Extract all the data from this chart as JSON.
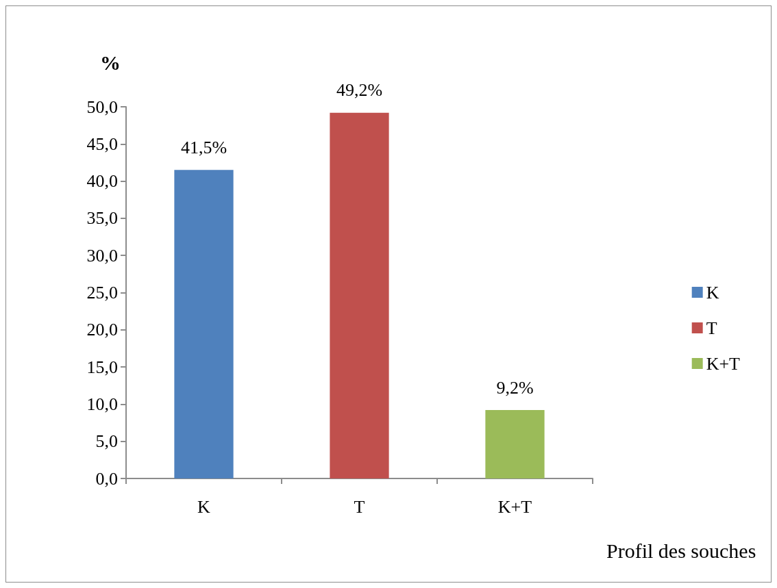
{
  "chart_data": {
    "type": "bar",
    "xlabel": "Profil des souches",
    "ylabel": "%",
    "categories": [
      "K",
      "T",
      "K+T"
    ],
    "series": [
      {
        "name": "K",
        "color": "#4f81bd",
        "values": [
          41.5,
          null,
          null
        ],
        "value_labels": [
          "41,5%",
          null,
          null
        ]
      },
      {
        "name": "T",
        "color": "#c0504d",
        "values": [
          null,
          49.2,
          null
        ],
        "value_labels": [
          null,
          "49,2%",
          null
        ]
      },
      {
        "name": "K+T",
        "color": "#9bbb59",
        "values": [
          null,
          null,
          9.2
        ],
        "value_labels": [
          null,
          null,
          "9,2%"
        ]
      }
    ],
    "ylim": [
      0,
      50
    ],
    "yticks": [
      {
        "value": 0,
        "label": "0,0"
      },
      {
        "value": 5,
        "label": "5,0"
      },
      {
        "value": 10,
        "label": "10,0"
      },
      {
        "value": 15,
        "label": "15,0"
      },
      {
        "value": 20,
        "label": "20,0"
      },
      {
        "value": 25,
        "label": "25,0"
      },
      {
        "value": 30,
        "label": "30,0"
      },
      {
        "value": 35,
        "label": "35,0"
      },
      {
        "value": 40,
        "label": "40,0"
      },
      {
        "value": 45,
        "label": "45,0"
      },
      {
        "value": 50,
        "label": "50,0"
      }
    ],
    "legend": "right",
    "grid": false
  }
}
